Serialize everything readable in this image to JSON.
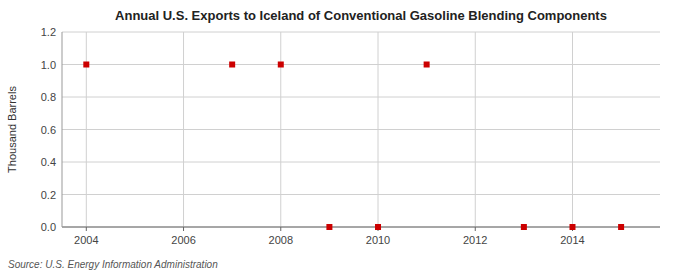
{
  "chart_data": {
    "type": "scatter",
    "title": "Annual U.S. Exports to Iceland of Conventional Gasoline Blending Components",
    "ylabel": "Thousand Barrels",
    "source": "Source: U.S. Energy Information Administration",
    "x": [
      2004,
      2007,
      2008,
      2009,
      2010,
      2011,
      2013,
      2014,
      2015
    ],
    "values": [
      1.0,
      1.0,
      1.0,
      0.0,
      0.0,
      1.0,
      0.0,
      0.0,
      0.0
    ],
    "color": "#cc0000",
    "marker": "square",
    "xlim": [
      2003.5,
      2015.8
    ],
    "ylim": [
      0.0,
      1.2
    ],
    "xticks": [
      2004,
      2006,
      2008,
      2010,
      2012,
      2014
    ],
    "yticks": [
      {
        "value": 0.0,
        "label": "0.0"
      },
      0.2,
      0.4,
      0.6,
      0.8,
      {
        "value": 1.0,
        "label": "1.0"
      },
      1.2
    ],
    "grid": true
  }
}
